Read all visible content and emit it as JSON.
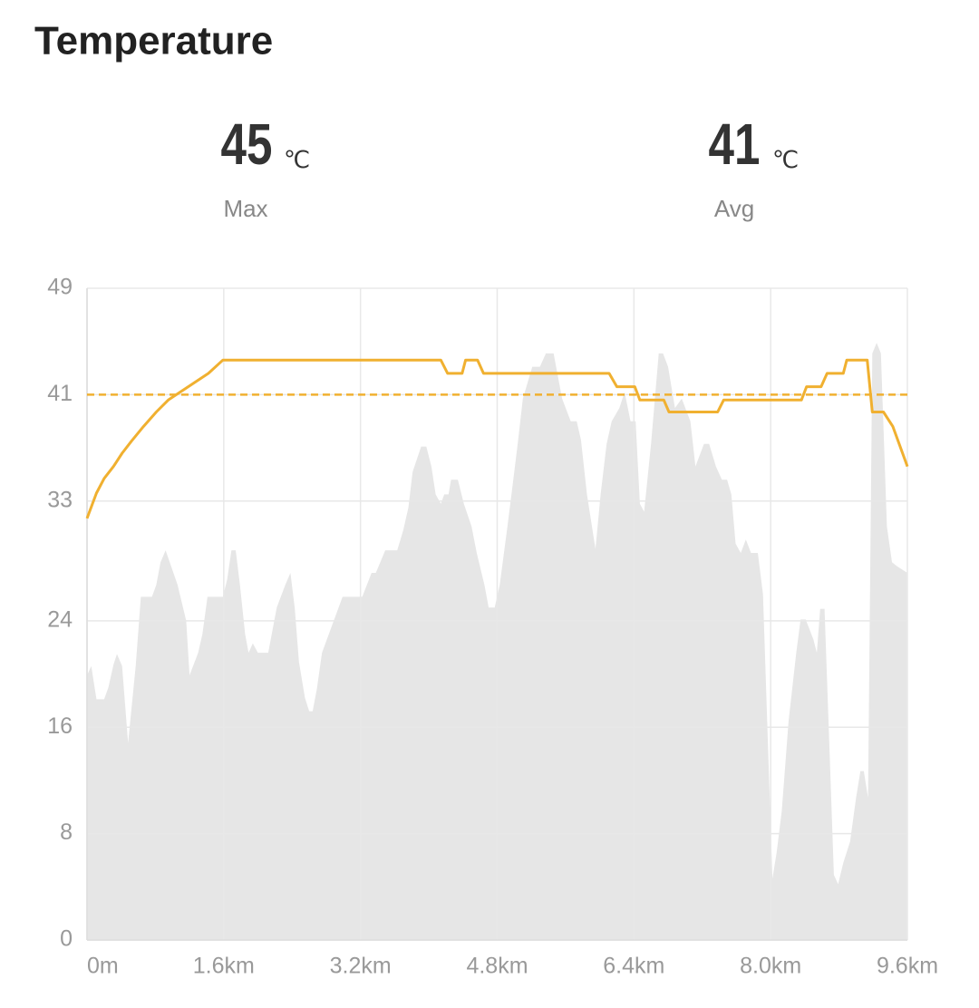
{
  "header": {
    "title": "Temperature"
  },
  "stats": [
    {
      "value": 45,
      "unit": "℃",
      "label": "Max"
    },
    {
      "value": 41,
      "unit": "℃",
      "label": "Avg"
    }
  ],
  "chart_data": {
    "type": "line",
    "xlim": [
      0,
      9.6
    ],
    "xticks": [
      {
        "value": 0,
        "label": "0m"
      },
      {
        "value": 1.6,
        "label": "1.6km"
      },
      {
        "value": 3.2,
        "label": "3.2km"
      },
      {
        "value": 4.8,
        "label": "4.8km"
      },
      {
        "value": 6.4,
        "label": "6.4km"
      },
      {
        "value": 8.0,
        "label": "8.0km"
      },
      {
        "value": 9.6,
        "label": "9.6km"
      }
    ],
    "ylim": [
      0,
      49
    ],
    "yticks": [
      0,
      8,
      16,
      24,
      33,
      41,
      49
    ],
    "grid": true,
    "avg_color": "#f0b030",
    "series": [
      {
        "type": "area",
        "color": "#e6e6e6",
        "x": [
          0,
          0.05,
          0.11,
          0.2,
          0.25,
          0.31,
          0.35,
          0.41,
          0.48,
          0.57,
          0.63,
          0.76,
          0.81,
          0.86,
          0.92,
          1.06,
          1.16,
          1.2,
          1.3,
          1.35,
          1.41,
          1.59,
          1.64,
          1.69,
          1.74,
          1.79,
          1.85,
          1.89,
          1.94,
          2.0,
          2.12,
          2.22,
          2.32,
          2.38,
          2.43,
          2.48,
          2.55,
          2.6,
          2.64,
          2.69,
          2.75,
          2.99,
          3.22,
          3.33,
          3.38,
          3.49,
          3.63,
          3.7,
          3.76,
          3.81,
          3.91,
          3.97,
          4.03,
          4.08,
          4.14,
          4.18,
          4.23,
          4.26,
          4.34,
          4.41,
          4.5,
          4.56,
          4.65,
          4.7,
          4.77,
          4.83,
          4.92,
          4.98,
          5.04,
          5.1,
          5.21,
          5.3,
          5.37,
          5.46,
          5.56,
          5.66,
          5.73,
          5.78,
          5.85,
          5.95,
          6.01,
          6.08,
          6.14,
          6.23,
          6.29,
          6.36,
          6.42,
          6.47,
          6.52,
          6.6,
          6.69,
          6.74,
          6.8,
          6.88,
          6.96,
          7.06,
          7.12,
          7.22,
          7.28,
          7.36,
          7.43,
          7.49,
          7.54,
          7.59,
          7.65,
          7.71,
          7.77,
          7.85,
          7.91,
          7.98,
          8.02,
          8.07,
          8.13,
          8.21,
          8.3,
          8.35,
          8.41,
          8.5,
          8.54,
          8.58,
          8.63,
          8.69,
          8.74,
          8.79,
          8.85,
          8.93,
          9.0,
          9.05,
          9.09,
          9.14,
          9.19,
          9.24,
          9.29,
          9.36,
          9.42,
          9.48,
          9.6
        ],
        "values": [
          19.9,
          20.6,
          18.1,
          18.1,
          19.0,
          20.7,
          21.5,
          20.6,
          14.8,
          20.6,
          25.8,
          25.8,
          26.7,
          28.4,
          29.3,
          26.7,
          24.0,
          19.9,
          21.6,
          23.0,
          25.8,
          25.8,
          27.1,
          29.3,
          29.3,
          26.7,
          23.0,
          21.6,
          22.3,
          21.6,
          21.6,
          25.0,
          26.7,
          27.6,
          25.0,
          20.9,
          18.2,
          17.2,
          17.2,
          18.9,
          21.6,
          25.8,
          25.8,
          27.6,
          27.6,
          29.3,
          29.3,
          30.8,
          32.5,
          35.2,
          37.1,
          37.1,
          35.6,
          33.5,
          32.8,
          33.5,
          33.5,
          34.6,
          34.6,
          32.8,
          31.1,
          29.1,
          26.7,
          25.0,
          25.0,
          26.7,
          31.1,
          34.2,
          37.3,
          40.7,
          43.1,
          43.1,
          44.1,
          44.1,
          40.7,
          39.0,
          39.0,
          37.6,
          33.5,
          29.4,
          33.5,
          37.3,
          39.0,
          40.0,
          41.2,
          39.0,
          39.0,
          32.8,
          32.2,
          37.3,
          44.1,
          44.1,
          43.1,
          40.0,
          40.7,
          39.0,
          35.6,
          37.3,
          37.3,
          35.6,
          34.6,
          34.6,
          33.5,
          29.8,
          29.1,
          30.1,
          29.1,
          29.1,
          26.0,
          12.4,
          4.6,
          6.6,
          9.7,
          16.5,
          21.6,
          24.1,
          24.1,
          22.6,
          21.6,
          24.9,
          24.9,
          14.1,
          4.9,
          4.2,
          5.8,
          7.4,
          10.7,
          12.7,
          12.7,
          10.7,
          44.1,
          44.9,
          44.1,
          31.1,
          28.4,
          28.1,
          27.6
        ]
      },
      {
        "type": "line",
        "color": "#f0b030",
        "x": [
          0,
          0.11,
          0.2,
          0.31,
          0.41,
          0.52,
          0.66,
          0.81,
          0.95,
          1.16,
          1.42,
          1.59,
          4.14,
          4.22,
          4.39,
          4.43,
          4.57,
          4.64,
          6.11,
          6.2,
          6.41,
          6.47,
          6.75,
          6.81,
          7.38,
          7.45,
          8.36,
          8.42,
          8.59,
          8.66,
          8.85,
          8.89,
          9.13,
          9.19,
          9.32,
          9.43,
          9.6
        ],
        "values": [
          31.7,
          33.6,
          34.7,
          35.6,
          36.6,
          37.5,
          38.6,
          39.7,
          40.6,
          41.5,
          42.6,
          43.6,
          43.6,
          42.6,
          42.6,
          43.6,
          43.6,
          42.6,
          42.6,
          41.6,
          41.6,
          40.6,
          40.6,
          39.7,
          39.7,
          40.6,
          40.6,
          41.6,
          41.6,
          42.6,
          42.6,
          43.6,
          43.6,
          39.7,
          39.7,
          38.6,
          35.6
        ]
      }
    ]
  }
}
